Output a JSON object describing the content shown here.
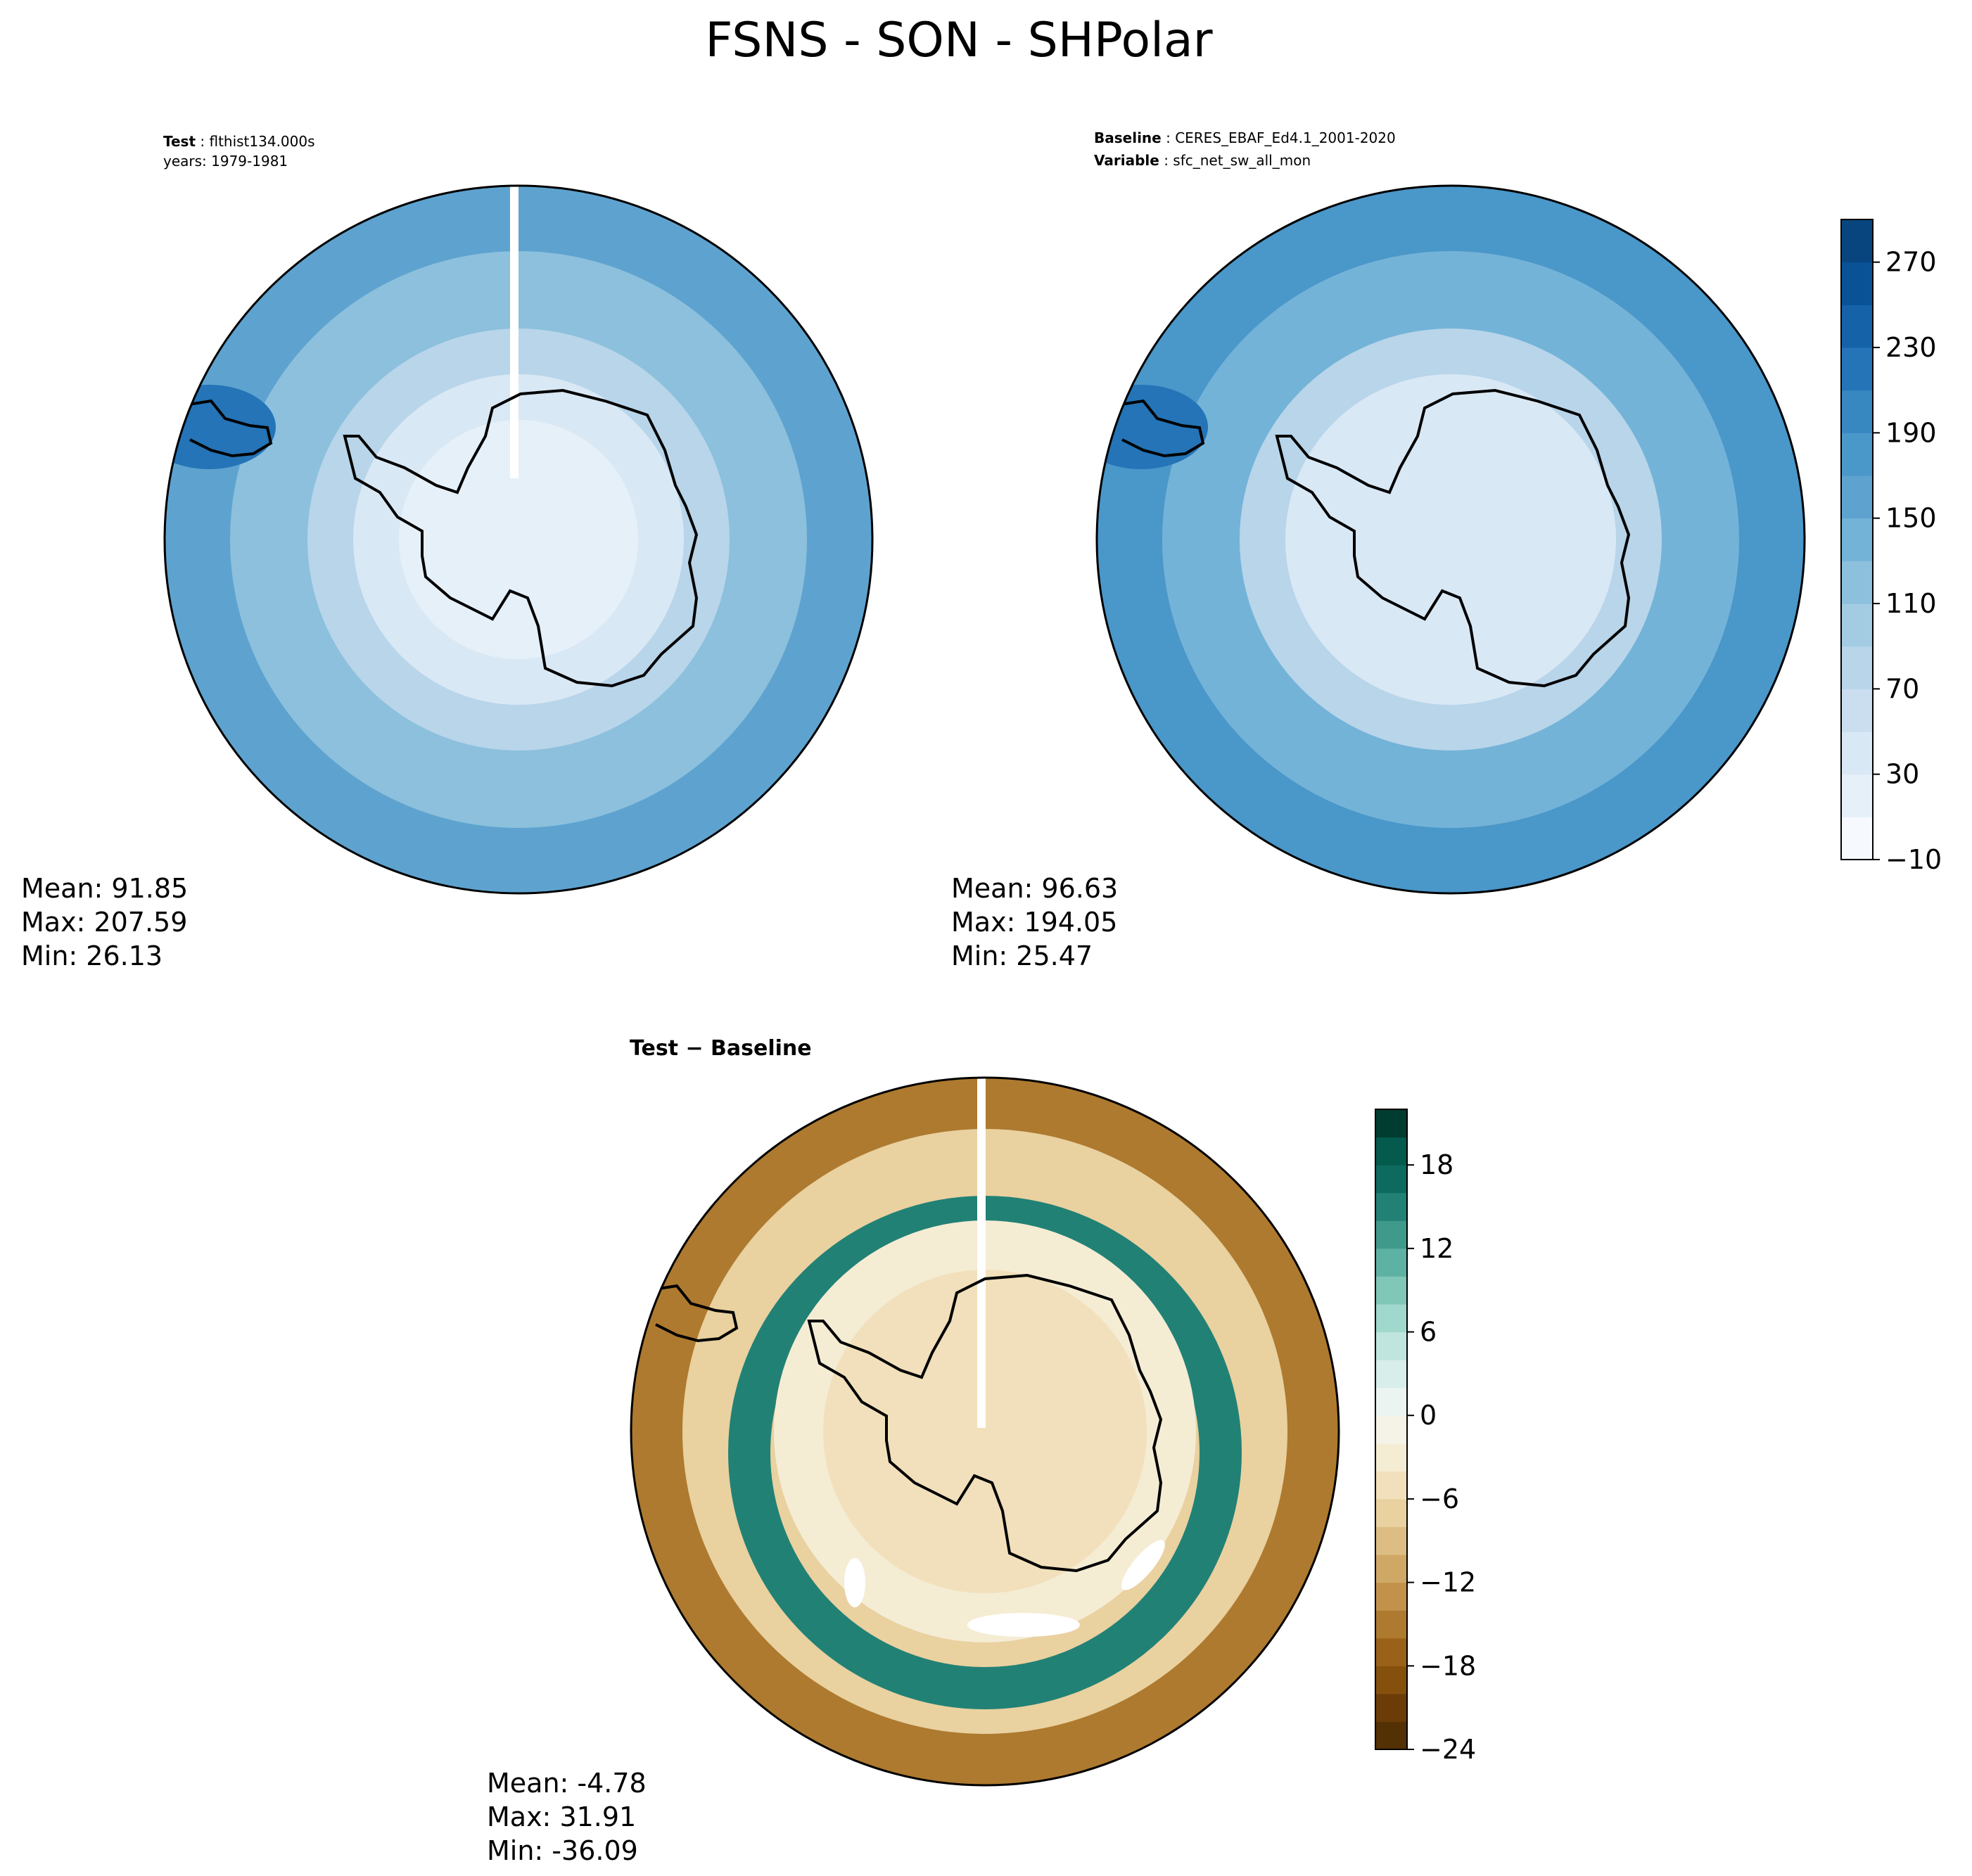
{
  "figure": {
    "title": "FSNS - SON - SHPolar"
  },
  "chart_data": [
    {
      "type": "heatmap",
      "panel": "test",
      "header": [
        {
          "label": "Test",
          "value": "flthist134.000s"
        },
        {
          "label": "",
          "value": "years: 1979-1981"
        }
      ],
      "stats": {
        "mean": "Mean: 91.85",
        "max": "Max: 207.59",
        "min": "Min: 26.13"
      },
      "projection": "south polar stereographic",
      "colormap": "Blues",
      "colorbar": {
        "levels": [
          -10,
          10,
          30,
          50,
          70,
          90,
          110,
          130,
          150,
          170,
          190,
          210,
          230,
          250,
          270,
          290
        ],
        "ticks": [
          -10,
          30,
          70,
          110,
          150,
          190,
          230,
          270
        ],
        "colors": [
          "#f6fafe",
          "#e6f0f9",
          "#d9e8f5",
          "#cadef0",
          "#b8d5ea",
          "#a3cce3",
          "#8cc0dd",
          "#74b3d8",
          "#5ea3cf",
          "#4a97c9",
          "#3787c0",
          "#2474b7",
          "#1562a9",
          "#0a5296",
          "#08457e"
        ]
      },
      "regions": [
        {
          "zone": "interior",
          "value": 20
        },
        {
          "zone": "coast",
          "value": 40
        },
        {
          "zone": "sea-ice",
          "value": 70
        },
        {
          "zone": "ocean-ring",
          "value": 120
        },
        {
          "zone": "outer-ocean",
          "value": 150
        },
        {
          "zone": "south-america-coast",
          "value": 215
        }
      ]
    },
    {
      "type": "heatmap",
      "panel": "baseline",
      "header": [
        {
          "label": "Baseline",
          "value": "CERES_EBAF_Ed4.1_2001-2020"
        },
        {
          "label": "Variable",
          "value": "sfc_net_sw_all_mon"
        }
      ],
      "stats": {
        "mean": "Mean: 96.63",
        "max": "Max: 194.05",
        "min": "Min: 25.47"
      },
      "projection": "south polar stereographic",
      "colormap": "Blues",
      "colorbar": {
        "levels": [
          -10,
          10,
          30,
          50,
          70,
          90,
          110,
          130,
          150,
          170,
          190,
          210,
          230,
          250,
          270,
          290
        ],
        "ticks": [
          -10,
          30,
          70,
          110,
          150,
          190,
          230,
          270
        ],
        "colors": [
          "#f6fafe",
          "#e6f0f9",
          "#d9e8f5",
          "#cadef0",
          "#b8d5ea",
          "#a3cce3",
          "#8cc0dd",
          "#74b3d8",
          "#5ea3cf",
          "#4a97c9",
          "#3787c0",
          "#2474b7",
          "#1562a9",
          "#0a5296",
          "#08457e"
        ]
      },
      "regions": [
        {
          "zone": "interior",
          "value": 35
        },
        {
          "zone": "coast",
          "value": 45
        },
        {
          "zone": "sea-ice",
          "value": 80
        },
        {
          "zone": "ocean-ring",
          "value": 130
        },
        {
          "zone": "outer-ocean",
          "value": 170
        },
        {
          "zone": "south-america-coast",
          "value": 210
        }
      ]
    },
    {
      "type": "heatmap",
      "panel": "difference",
      "header": [
        {
          "label": "Test − Baseline",
          "value": ""
        }
      ],
      "stats": {
        "mean": "Mean: -4.78",
        "max": "Max: 31.91",
        "min": "Min: -36.09"
      },
      "projection": "south polar stereographic",
      "colormap": "BrBG",
      "colorbar": {
        "levels": [
          -24,
          -22,
          -20,
          -18,
          -16,
          -14,
          -12,
          -10,
          -8,
          -6,
          -4,
          -2,
          0,
          2,
          4,
          6,
          8,
          10,
          12,
          14,
          16,
          18,
          20,
          22
        ],
        "ticks": [
          -24,
          -18,
          -12,
          -6,
          0,
          6,
          12,
          18
        ],
        "colors": [
          "#543005",
          "#6c3c08",
          "#84500b",
          "#9a6218",
          "#ae7a2f",
          "#c2924b",
          "#d0a866",
          "#ddbd83",
          "#e9d1a0",
          "#f1e0bb",
          "#f5ecd4",
          "#f5f2e8",
          "#ecf4f2",
          "#d8eeea",
          "#bfe5de",
          "#a1d8cd",
          "#80c7b8",
          "#5eb2a3",
          "#3f9a8b",
          "#228175",
          "#0d6a5e",
          "#045a4c",
          "#003c30"
        ]
      },
      "regions": [
        {
          "zone": "outer-ocean",
          "value": -15
        },
        {
          "zone": "mid-ocean",
          "value": -8
        },
        {
          "zone": "sea-ice-ring",
          "value": 14
        },
        {
          "zone": "coastal-ocean",
          "value": -3
        },
        {
          "zone": "interior",
          "value": -5
        }
      ]
    }
  ]
}
